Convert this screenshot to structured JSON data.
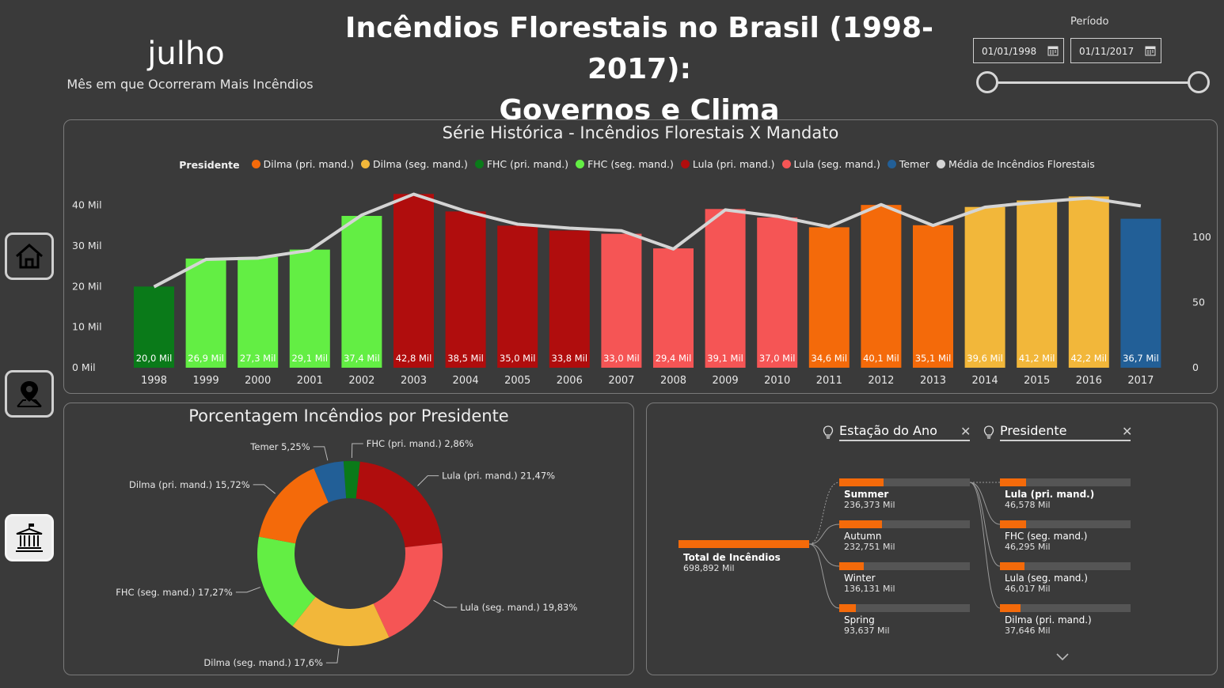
{
  "header": {
    "month_value": "julho",
    "month_subtitle": "Mês em que Ocorreram Mais Incêndios",
    "title_line1": "Incêndios Florestais no Brasil (1998-2017):",
    "title_line2": "Governos e Clima",
    "period_label": "Período",
    "date_start": "01/01/1998",
    "date_end": "01/11/2017"
  },
  "nav": [
    {
      "icon": "home-icon"
    },
    {
      "icon": "map-pin-icon"
    },
    {
      "icon": "government-building-icon"
    }
  ],
  "chart_data": [
    {
      "type": "bar",
      "title": "Série Histórica - Incêndios Florestais X Mandato",
      "legend_title": "Presidente",
      "categories": [
        "1998",
        "1999",
        "2000",
        "2001",
        "2002",
        "2003",
        "2004",
        "2005",
        "2006",
        "2007",
        "2008",
        "2009",
        "2010",
        "2011",
        "2012",
        "2013",
        "2014",
        "2015",
        "2016",
        "2017"
      ],
      "values": [
        20.0,
        26.9,
        27.3,
        29.1,
        37.4,
        42.8,
        38.5,
        35.0,
        33.8,
        33.0,
        29.4,
        39.1,
        37.0,
        34.6,
        40.1,
        35.1,
        39.6,
        41.2,
        42.2,
        36.7
      ],
      "value_labels": [
        "20,0 Mil",
        "26,9 Mil",
        "27,3 Mil",
        "29,1 Mil",
        "37,4 Mil",
        "42,8 Mil",
        "38,5 Mil",
        "35,0 Mil",
        "33,8 Mil",
        "33,0 Mil",
        "29,4 Mil",
        "39,1 Mil",
        "37,0 Mil",
        "34,6 Mil",
        "40,1 Mil",
        "35,1 Mil",
        "39,6 Mil",
        "41,2 Mil",
        "42,2 Mil",
        "36,7 Mil"
      ],
      "bar_president": [
        "FHC (pri. mand.)",
        "FHC (seg. mand.)",
        "FHC (seg. mand.)",
        "FHC (seg. mand.)",
        "FHC (seg. mand.)",
        "Lula (pri. mand.)",
        "Lula (pri. mand.)",
        "Lula (pri. mand.)",
        "Lula (pri. mand.)",
        "Lula (seg. mand.)",
        "Lula (seg. mand.)",
        "Lula (seg. mand.)",
        "Lula (seg. mand.)",
        "Dilma (pri. mand.)",
        "Dilma (pri. mand.)",
        "Dilma (pri. mand.)",
        "Dilma (seg. mand.)",
        "Dilma (seg. mand.)",
        "Dilma (seg. mand.)",
        "Temer"
      ],
      "series": [
        {
          "name": "Dilma (pri. mand.)",
          "color": "#f46a0a"
        },
        {
          "name": "Dilma (seg. mand.)",
          "color": "#f2b73a"
        },
        {
          "name": "FHC (pri. mand.)",
          "color": "#0a7a19"
        },
        {
          "name": "FHC (seg. mand.)",
          "color": "#63ee44"
        },
        {
          "name": "Lula (pri. mand.)",
          "color": "#b00d0d"
        },
        {
          "name": "Lula (seg. mand.)",
          "color": "#f55555"
        },
        {
          "name": "Temer",
          "color": "#225f97"
        },
        {
          "name": "Média de Incêndios Florestais",
          "color": "#d4d4d4"
        }
      ],
      "left_axis_ticks": [
        "0 Mil",
        "10 Mil",
        "20 Mil",
        "30 Mil",
        "40 Mil"
      ],
      "ylim": [
        0,
        45
      ],
      "right_axis_ticks": [
        "0",
        "50",
        "100"
      ],
      "line_series": {
        "name": "Média de Incêndios Florestais",
        "values": [
          62,
          83,
          84,
          90,
          117,
          133,
          120,
          110,
          107,
          105,
          91,
          121,
          116,
          108,
          125,
          109,
          123,
          127,
          130,
          124
        ]
      },
      "y2lim": [
        0,
        140
      ]
    },
    {
      "type": "pie",
      "title": "Porcentagem Incêndios por Presidente",
      "slices": [
        {
          "name": "FHC (pri. mand.)",
          "value": 2.86,
          "label": "FHC (pri. mand.) 2,86%",
          "color": "#0a7a19"
        },
        {
          "name": "Lula (pri. mand.)",
          "value": 21.47,
          "label": "Lula (pri. mand.) 21,47%",
          "color": "#b00d0d"
        },
        {
          "name": "Lula (seg. mand.)",
          "value": 19.83,
          "label": "Lula (seg. mand.) 19,83%",
          "color": "#f55555"
        },
        {
          "name": "Dilma (seg. mand.)",
          "value": 17.6,
          "label": "Dilma (seg. mand.) 17,6%",
          "color": "#f2b73a"
        },
        {
          "name": "FHC (seg. mand.)",
          "value": 17.27,
          "label": "FHC (seg. mand.) 17,27%",
          "color": "#63ee44"
        },
        {
          "name": "Dilma (pri. mand.)",
          "value": 15.72,
          "label": "Dilma (pri. mand.) 15,72%",
          "color": "#f46a0a"
        },
        {
          "name": "Temer",
          "value": 5.25,
          "label": "Temer 5,25%",
          "color": "#225f97"
        }
      ]
    }
  ],
  "decomposition_tree": {
    "header1": "Estação do Ano",
    "header2": "Presidente",
    "root": {
      "label": "Total de Incêndios",
      "value": "698,892 Mil",
      "fill": 1.0
    },
    "level1": [
      {
        "label": "Summer",
        "value": "236,373 Mil",
        "fill": 0.34
      },
      {
        "label": "Autumn",
        "value": "232,751 Mil",
        "fill": 0.33
      },
      {
        "label": "Winter",
        "value": "136,131 Mil",
        "fill": 0.19
      },
      {
        "label": "Spring",
        "value": "93,637 Mil",
        "fill": 0.13
      }
    ],
    "level2": [
      {
        "label": "Lula (pri. mand.)",
        "value": "46,578 Mil",
        "fill": 0.2
      },
      {
        "label": "FHC (seg. mand.)",
        "value": "46,295 Mil",
        "fill": 0.2
      },
      {
        "label": "Lula (seg. mand.)",
        "value": "46,017 Mil",
        "fill": 0.19
      },
      {
        "label": "Dilma (pri. mand.)",
        "value": "37,646 Mil",
        "fill": 0.16
      }
    ]
  }
}
